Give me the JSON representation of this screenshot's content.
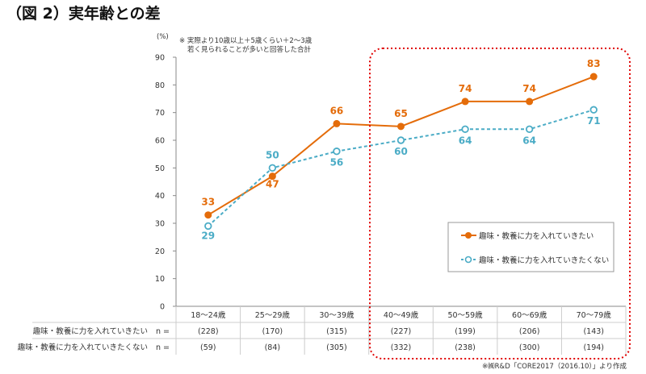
{
  "title": "（図 2）実年齢との差",
  "note_lines": [
    "※ 実際より10歳以上＋5歳くらい＋2～3歳",
    "若く見られることが多いと回答した合計"
  ],
  "source": "※㈱R&D「CORE2017（2016.10）」より作成",
  "colors": {
    "series1": "#E46C0A",
    "series2": "#4BACC6",
    "highlight_box": "#E00000"
  },
  "chart_data": {
    "type": "line",
    "ylabel": "(%)",
    "ylim": [
      0,
      90
    ],
    "yticks": [
      0,
      10,
      20,
      30,
      40,
      50,
      60,
      70,
      80,
      90
    ],
    "categories": [
      "18～24歳",
      "25～29歳",
      "30～39歳",
      "40～49歳",
      "50～59歳",
      "60～69歳",
      "70～79歳"
    ],
    "series": [
      {
        "name": "趣味・教養に力を入れていきたい",
        "values": [
          33,
          47,
          66,
          65,
          74,
          74,
          83
        ],
        "style": "solid",
        "marker": "filled-circle"
      },
      {
        "name": "趣味・教養に力を入れていきたくない",
        "values": [
          29,
          50,
          56,
          60,
          64,
          64,
          71
        ],
        "style": "dashed",
        "marker": "open-circle"
      }
    ],
    "legend": "bottom-right",
    "highlighted_categories": [
      "40～49歳",
      "50～59歳",
      "60～69歳",
      "70～79歳"
    ]
  },
  "n_table": {
    "n_label": "n =",
    "rows": [
      {
        "label": "趣味・教養に力を入れていきたい",
        "values": [
          "(228)",
          "(170)",
          "(315)",
          "(227)",
          "(199)",
          "(206)",
          "(143)"
        ]
      },
      {
        "label": "趣味・教養に力を入れていきたくない",
        "values": [
          "(59)",
          "(84)",
          "(305)",
          "(332)",
          "(238)",
          "(300)",
          "(194)"
        ]
      }
    ]
  }
}
